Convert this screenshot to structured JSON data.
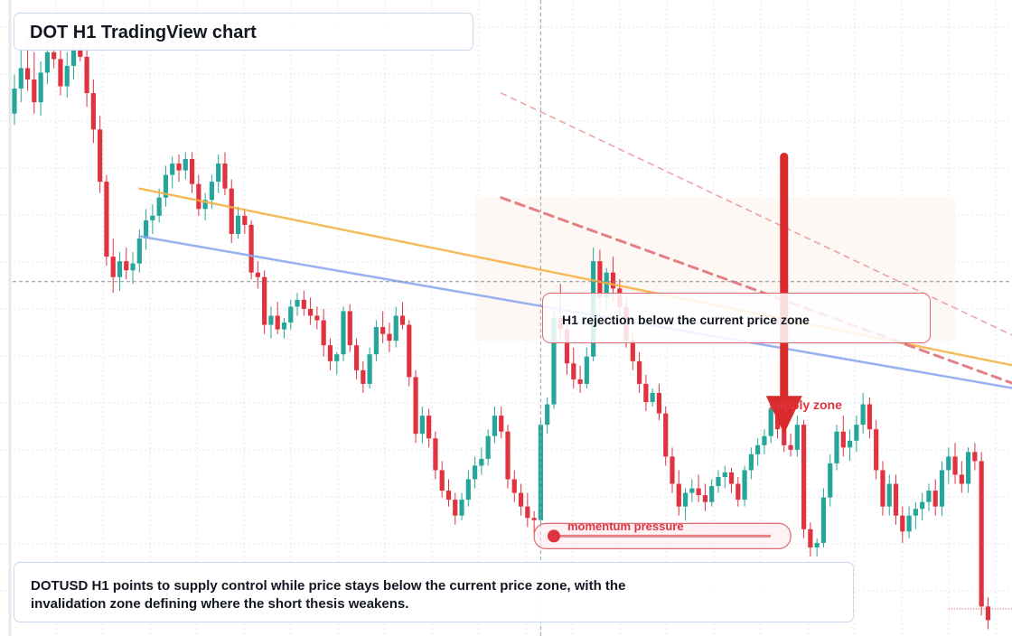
{
  "title": "DOT H1 TradingView chart",
  "annotation_text": "H1 rejection below the current price zone",
  "supply_label": "supply zone",
  "momentum_label": "momentum pressure",
  "caption": "DOTUSD H1 points to supply control while price stays below the current price zone, with the invalidation zone defining where the short thesis weakens.",
  "colors": {
    "up": "#26a69a",
    "down": "#e0323f",
    "yellow_line": "#f5b041",
    "blue_line": "#8fa8f0",
    "red_dash": "#e06a72",
    "grid": "#e1e4ea"
  },
  "chart_data": {
    "type": "candlestick",
    "series": [
      {
        "name": "DOTUSD H1",
        "ohlc": [
          [
            8.75,
            8.92,
            8.7,
            8.86
          ],
          [
            8.86,
            9.05,
            8.8,
            8.95
          ],
          [
            8.95,
            9.08,
            8.85,
            8.9
          ],
          [
            8.9,
            9.02,
            8.75,
            8.8
          ],
          [
            8.8,
            8.98,
            8.74,
            8.93
          ],
          [
            8.93,
            9.1,
            8.88,
            9.02
          ],
          [
            9.02,
            9.12,
            8.95,
            8.99
          ],
          [
            8.99,
            9.05,
            8.83,
            8.87
          ],
          [
            8.87,
            9.02,
            8.82,
            8.96
          ],
          [
            8.96,
            9.1,
            8.9,
            9.04
          ],
          [
            9.04,
            9.12,
            8.98,
            9.0
          ],
          [
            9.0,
            9.06,
            8.78,
            8.84
          ],
          [
            8.84,
            8.9,
            8.62,
            8.68
          ],
          [
            8.68,
            8.74,
            8.4,
            8.45
          ],
          [
            8.45,
            8.48,
            8.08,
            8.12
          ],
          [
            8.12,
            8.2,
            7.96,
            8.03
          ],
          [
            8.03,
            8.14,
            7.97,
            8.1
          ],
          [
            8.1,
            8.16,
            8.02,
            8.06
          ],
          [
            8.06,
            8.14,
            8.0,
            8.09
          ],
          [
            8.09,
            8.24,
            8.05,
            8.2
          ],
          [
            8.2,
            8.33,
            8.15,
            8.28
          ],
          [
            8.28,
            8.35,
            8.22,
            8.3
          ],
          [
            8.3,
            8.42,
            8.27,
            8.38
          ],
          [
            8.38,
            8.52,
            8.34,
            8.48
          ],
          [
            8.48,
            8.56,
            8.42,
            8.53
          ],
          [
            8.53,
            8.57,
            8.45,
            8.5
          ],
          [
            8.5,
            8.58,
            8.46,
            8.55
          ],
          [
            8.55,
            8.58,
            8.4,
            8.44
          ],
          [
            8.44,
            8.48,
            8.3,
            8.33
          ],
          [
            8.33,
            8.4,
            8.28,
            8.37
          ],
          [
            8.37,
            8.48,
            8.33,
            8.45
          ],
          [
            8.45,
            8.57,
            8.4,
            8.53
          ],
          [
            8.53,
            8.58,
            8.39,
            8.42
          ],
          [
            8.42,
            8.46,
            8.18,
            8.22
          ],
          [
            8.22,
            8.34,
            8.2,
            8.3
          ],
          [
            8.3,
            8.33,
            8.22,
            8.26
          ],
          [
            8.26,
            8.28,
            8.02,
            8.05
          ],
          [
            8.05,
            8.1,
            7.98,
            8.03
          ],
          [
            8.03,
            8.06,
            7.78,
            7.82
          ],
          [
            7.82,
            7.9,
            7.76,
            7.86
          ],
          [
            7.86,
            7.92,
            7.78,
            7.8
          ],
          [
            7.8,
            7.85,
            7.76,
            7.83
          ],
          [
            7.83,
            7.93,
            7.8,
            7.9
          ],
          [
            7.9,
            7.96,
            7.86,
            7.93
          ],
          [
            7.93,
            7.97,
            7.86,
            7.89
          ],
          [
            7.89,
            7.94,
            7.82,
            7.86
          ],
          [
            7.86,
            7.9,
            7.8,
            7.84
          ],
          [
            7.84,
            7.89,
            7.68,
            7.73
          ],
          [
            7.73,
            7.76,
            7.62,
            7.66
          ],
          [
            7.66,
            7.7,
            7.6,
            7.69
          ],
          [
            7.69,
            7.9,
            7.66,
            7.88
          ],
          [
            7.88,
            7.91,
            7.7,
            7.73
          ],
          [
            7.73,
            7.76,
            7.58,
            7.62
          ],
          [
            7.62,
            7.66,
            7.52,
            7.56
          ],
          [
            7.56,
            7.72,
            7.54,
            7.69
          ],
          [
            7.69,
            7.84,
            7.66,
            7.81
          ],
          [
            7.81,
            7.88,
            7.74,
            7.78
          ],
          [
            7.78,
            7.83,
            7.7,
            7.75
          ],
          [
            7.75,
            7.9,
            7.72,
            7.86
          ],
          [
            7.86,
            7.92,
            7.8,
            7.82
          ],
          [
            7.82,
            7.84,
            7.55,
            7.59
          ],
          [
            7.59,
            7.62,
            7.3,
            7.34
          ],
          [
            7.34,
            7.46,
            7.3,
            7.42
          ],
          [
            7.42,
            7.45,
            7.28,
            7.32
          ],
          [
            7.32,
            7.35,
            7.14,
            7.18
          ],
          [
            7.18,
            7.22,
            7.06,
            7.09
          ],
          [
            7.09,
            7.14,
            7.02,
            7.05
          ],
          [
            7.05,
            7.08,
            6.94,
            6.98
          ],
          [
            6.98,
            7.08,
            6.96,
            7.05
          ],
          [
            7.05,
            7.18,
            7.02,
            7.14
          ],
          [
            7.14,
            7.24,
            7.1,
            7.2
          ],
          [
            7.2,
            7.28,
            7.16,
            7.23
          ],
          [
            7.23,
            7.36,
            7.2,
            7.33
          ],
          [
            7.33,
            7.46,
            7.3,
            7.42
          ],
          [
            7.42,
            7.46,
            7.32,
            7.35
          ],
          [
            7.35,
            7.38,
            7.1,
            7.14
          ],
          [
            7.14,
            7.18,
            7.04,
            7.08
          ],
          [
            7.08,
            7.12,
            6.98,
            7.02
          ],
          [
            7.02,
            7.08,
            6.93,
            6.97
          ],
          [
            6.97,
            7.0,
            6.9,
            6.96
          ],
          [
            6.96,
            7.4,
            6.94,
            7.38
          ],
          [
            7.38,
            7.5,
            7.34,
            7.47
          ],
          [
            7.47,
            7.88,
            7.45,
            7.85
          ],
          [
            7.85,
            8.0,
            7.76,
            7.8
          ],
          [
            7.8,
            7.86,
            7.6,
            7.65
          ],
          [
            7.65,
            7.72,
            7.54,
            7.58
          ],
          [
            7.58,
            7.64,
            7.52,
            7.56
          ],
          [
            7.56,
            7.72,
            7.54,
            7.68
          ],
          [
            7.68,
            8.16,
            7.66,
            8.1
          ],
          [
            8.1,
            8.15,
            7.9,
            7.94
          ],
          [
            7.94,
            8.07,
            7.88,
            8.05
          ],
          [
            8.05,
            8.12,
            7.92,
            7.98
          ],
          [
            7.98,
            8.02,
            7.86,
            7.9
          ],
          [
            7.9,
            7.94,
            7.72,
            7.75
          ],
          [
            7.75,
            7.78,
            7.62,
            7.66
          ],
          [
            7.66,
            7.7,
            7.52,
            7.56
          ],
          [
            7.56,
            7.6,
            7.44,
            7.48
          ],
          [
            7.48,
            7.54,
            7.46,
            7.52
          ],
          [
            7.52,
            7.56,
            7.4,
            7.43
          ],
          [
            7.43,
            7.46,
            7.2,
            7.24
          ],
          [
            7.24,
            7.28,
            7.08,
            7.12
          ],
          [
            7.12,
            7.18,
            6.98,
            7.02
          ],
          [
            7.02,
            7.1,
            6.96,
            7.08
          ],
          [
            7.08,
            7.14,
            7.04,
            7.1
          ],
          [
            7.1,
            7.16,
            7.04,
            7.07
          ],
          [
            7.07,
            7.12,
            7.0,
            7.04
          ],
          [
            7.04,
            7.14,
            7.02,
            7.11
          ],
          [
            7.11,
            7.18,
            7.08,
            7.15
          ],
          [
            7.15,
            7.2,
            7.1,
            7.17
          ],
          [
            7.17,
            7.19,
            7.08,
            7.12
          ],
          [
            7.12,
            7.15,
            7.02,
            7.05
          ],
          [
            7.05,
            7.2,
            7.02,
            7.18
          ],
          [
            7.18,
            7.28,
            7.14,
            7.25
          ],
          [
            7.25,
            7.32,
            7.2,
            7.29
          ],
          [
            7.29,
            7.36,
            7.25,
            7.33
          ],
          [
            7.33,
            7.48,
            7.3,
            7.45
          ],
          [
            7.45,
            7.48,
            7.32,
            7.36
          ],
          [
            7.36,
            7.4,
            7.26,
            7.29
          ],
          [
            7.29,
            7.34,
            7.24,
            7.27
          ],
          [
            7.27,
            7.42,
            7.24,
            7.38
          ],
          [
            7.38,
            7.4,
            6.88,
            6.92
          ],
          [
            6.92,
            6.95,
            6.8,
            6.84
          ],
          [
            6.84,
            6.88,
            6.8,
            6.86
          ],
          [
            6.86,
            7.1,
            6.84,
            7.06
          ],
          [
            7.06,
            7.25,
            7.02,
            7.21
          ],
          [
            7.21,
            7.38,
            7.18,
            7.35
          ],
          [
            7.35,
            7.42,
            7.24,
            7.28
          ],
          [
            7.28,
            7.36,
            7.22,
            7.31
          ],
          [
            7.31,
            7.42,
            7.26,
            7.38
          ],
          [
            7.38,
            7.52,
            7.34,
            7.47
          ],
          [
            7.47,
            7.5,
            7.32,
            7.36
          ],
          [
            7.36,
            7.4,
            7.14,
            7.18
          ],
          [
            7.18,
            7.22,
            6.98,
            7.02
          ],
          [
            7.02,
            7.16,
            6.98,
            7.12
          ],
          [
            7.12,
            7.16,
            6.94,
            6.98
          ],
          [
            6.98,
            7.02,
            6.86,
            6.91
          ],
          [
            6.91,
            7.02,
            6.88,
            6.98
          ],
          [
            6.98,
            7.04,
            6.92,
            7.01
          ],
          [
            7.01,
            7.08,
            6.96,
            7.04
          ],
          [
            7.04,
            7.12,
            7.0,
            7.09
          ],
          [
            7.09,
            7.14,
            6.98,
            7.02
          ],
          [
            7.02,
            7.22,
            6.98,
            7.18
          ],
          [
            7.18,
            7.28,
            7.12,
            7.24
          ],
          [
            7.24,
            7.3,
            7.12,
            7.16
          ],
          [
            7.16,
            7.22,
            7.08,
            7.12
          ],
          [
            7.12,
            7.28,
            7.08,
            7.26
          ],
          [
            7.26,
            7.3,
            7.18,
            7.22
          ],
          [
            7.22,
            7.26,
            6.54,
            6.58
          ],
          [
            6.58,
            6.62,
            6.48,
            6.52
          ]
        ]
      }
    ],
    "ylim": [
      6.45,
      9.25
    ],
    "grid": true,
    "lines": [
      {
        "name": "yellow trendline",
        "from": [
          19,
          8.42
        ],
        "to": [
          152,
          7.64
        ]
      },
      {
        "name": "blue trendline",
        "from": [
          19,
          8.21
        ],
        "to": [
          152,
          7.54
        ]
      },
      {
        "name": "red dashed upper",
        "from": [
          74,
          8.84
        ],
        "to": [
          152,
          7.77
        ]
      },
      {
        "name": "red dashed lower",
        "from": [
          74,
          8.38
        ],
        "to": [
          152,
          7.56
        ]
      }
    ],
    "supply_zone": [
      7.75,
      8.38
    ],
    "current_price": 8.01,
    "lower_price_line": 6.57,
    "crosshair_x": 80,
    "arrow": {
      "x": 117,
      "from": 8.56,
      "to": 7.34
    },
    "momentum_bar": {
      "x_from": 79,
      "x_to": 118,
      "value": 6.89,
      "marker_x": 82
    }
  }
}
